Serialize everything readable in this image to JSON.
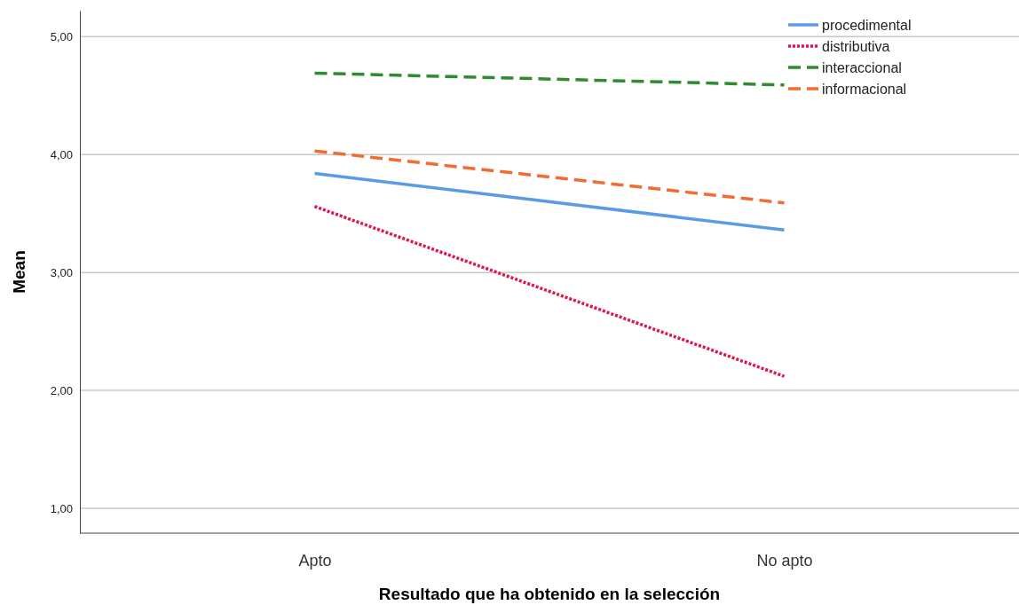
{
  "chart_data": {
    "type": "line",
    "xlabel": "Resultado que ha obtenido en la selección",
    "ylabel": "Mean",
    "categories": [
      "Apto",
      "No apto"
    ],
    "series": [
      {
        "name": "procedimental",
        "color": "#5b9be6",
        "values": [
          3.84,
          3.36
        ],
        "line_style": "solid"
      },
      {
        "name": "distributiva",
        "color": "#e2144a",
        "values": [
          3.56,
          2.12
        ],
        "line_style": "dotted"
      },
      {
        "name": "interaccional",
        "color": "#2e8b2e",
        "values": [
          4.69,
          4.59
        ],
        "line_style": "dashed"
      },
      {
        "name": "informacional",
        "color": "#f26b2f",
        "values": [
          4.03,
          3.59
        ],
        "line_style": "dashed"
      }
    ],
    "ylim": [
      0.79,
      5.22
    ],
    "yticks": [
      {
        "value": 1,
        "label": "1,00"
      },
      {
        "value": 2,
        "label": "2,00"
      },
      {
        "value": 3,
        "label": "3,00"
      },
      {
        "value": 4,
        "label": "4,00"
      },
      {
        "value": 5,
        "label": "5,00"
      }
    ],
    "grid": "y",
    "legend": "top right",
    "marker": "none"
  }
}
